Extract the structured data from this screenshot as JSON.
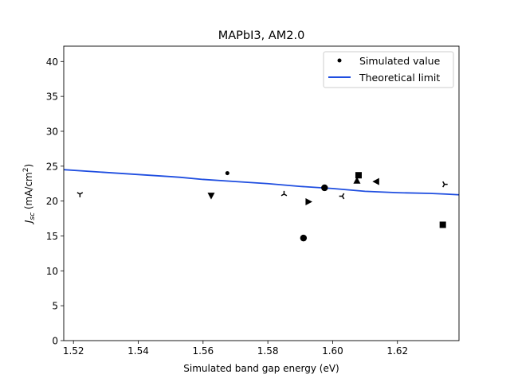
{
  "chart_data": {
    "type": "scatter",
    "title": "MAPbI3, AM2.0",
    "xlabel": "Simulated band gap energy (eV)",
    "ylabel": {
      "prefix": "J",
      "sub": "sc",
      "unit_open": " (mA/cm",
      "sup": "2",
      "unit_close": ")"
    },
    "xlim": [
      1.517,
      1.639
    ],
    "ylim": [
      0,
      42.2
    ],
    "x_ticks": [
      "1.52",
      "1.54",
      "1.56",
      "1.58",
      "1.60",
      "1.62"
    ],
    "y_ticks": [
      "0",
      "5",
      "10",
      "15",
      "20",
      "25",
      "30",
      "35",
      "40"
    ],
    "grid": false,
    "legend": {
      "placement": "top-right",
      "entries": [
        "Simulated value",
        "Theoretical limit"
      ]
    },
    "colors": {
      "points": "#000000",
      "limit_line": "#1f4ee0"
    },
    "series": [
      {
        "name": "Simulated value",
        "type": "scatter",
        "points": [
          {
            "x": 1.522,
            "y": 21.0,
            "marker": "tri_down"
          },
          {
            "x": 1.5625,
            "y": 20.8,
            "marker": "triangle_down"
          },
          {
            "x": 1.5675,
            "y": 24.0,
            "marker": "point"
          },
          {
            "x": 1.585,
            "y": 21.0,
            "marker": "tri_up"
          },
          {
            "x": 1.591,
            "y": 14.7,
            "marker": "circle"
          },
          {
            "x": 1.5925,
            "y": 19.9,
            "marker": "triangle_right"
          },
          {
            "x": 1.5975,
            "y": 21.9,
            "marker": "circle"
          },
          {
            "x": 1.603,
            "y": 20.7,
            "marker": "tri_left"
          },
          {
            "x": 1.6075,
            "y": 22.9,
            "marker": "triangle_up"
          },
          {
            "x": 1.608,
            "y": 23.7,
            "marker": "square"
          },
          {
            "x": 1.6135,
            "y": 22.8,
            "marker": "triangle_left"
          },
          {
            "x": 1.634,
            "y": 16.6,
            "marker": "square"
          },
          {
            "x": 1.6345,
            "y": 22.4,
            "marker": "tri_right"
          }
        ]
      },
      {
        "name": "Theoretical limit",
        "type": "line",
        "x": [
          1.517,
          1.53,
          1.54,
          1.55,
          1.553,
          1.56,
          1.57,
          1.58,
          1.59,
          1.6,
          1.61,
          1.62,
          1.63,
          1.635,
          1.639
        ],
        "y": [
          24.5,
          24.1,
          23.8,
          23.5,
          23.4,
          23.1,
          22.8,
          22.5,
          22.1,
          21.8,
          21.4,
          21.2,
          21.1,
          21.0,
          20.9
        ]
      }
    ]
  }
}
